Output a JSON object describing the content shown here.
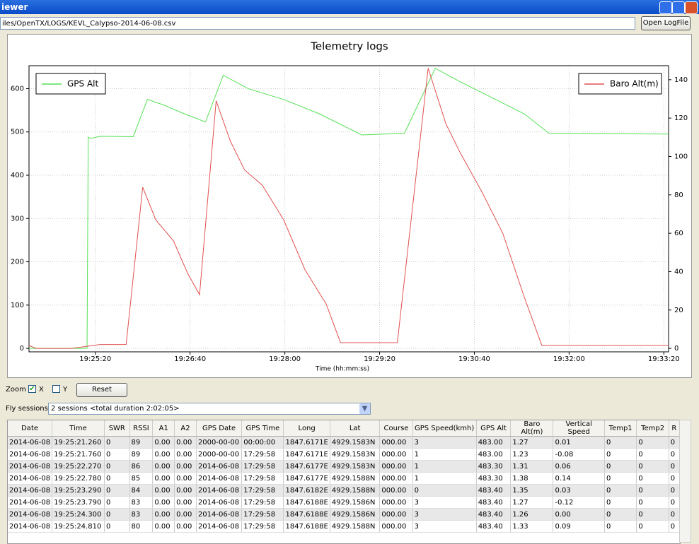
{
  "window": {
    "title": "iewer",
    "file_path": "iles/OpenTX/LOGS/KEVL_Calypso-2014-06-08.csv",
    "open_button": "Open LogFile"
  },
  "chart_data": {
    "type": "line",
    "title": "Telemetry logs",
    "x_label": "Time (hh:mm:ss)",
    "xlim": [
      "19:24:24",
      "19:33:24"
    ],
    "xticks": [
      "19:25:20",
      "19:26:40",
      "19:28:00",
      "19:29:20",
      "19:30:40",
      "19:32:00",
      "19:33:20"
    ],
    "ylim": [
      -8,
      653
    ],
    "yticks": [
      0,
      100,
      200,
      300,
      400,
      500,
      600
    ],
    "y2lim": [
      -1.8,
      147.3
    ],
    "y2ticks": [
      0,
      20,
      40,
      60,
      80,
      100,
      120,
      140
    ],
    "grid": true,
    "series": [
      {
        "name": "GPS Alt",
        "color": "#55e055",
        "legend": "upper left",
        "x": [
          "19:24:24",
          "19:25:13",
          "19:25:14",
          "19:25:16",
          "19:25:24",
          "19:25:52",
          "19:26:04",
          "19:26:18",
          "19:26:35",
          "19:26:53",
          "19:27:08",
          "19:27:29",
          "19:27:59",
          "19:28:29",
          "19:29:05",
          "19:29:41",
          "19:30:07",
          "19:30:28",
          "19:30:58",
          "19:31:22",
          "19:31:43",
          "19:33:24"
        ],
        "values": [
          0,
          0,
          488,
          485,
          490,
          489,
          575,
          562,
          542,
          523,
          631,
          600,
          575,
          542,
          493,
          497,
          647,
          616,
          575,
          542,
          497,
          495
        ]
      },
      {
        "name": "Baro Alt(m)",
        "color": "#e05050",
        "axis": "y2",
        "legend": "upper right",
        "x": [
          "19:24:24",
          "19:24:30",
          "19:25:00",
          "19:25:24",
          "19:25:46",
          "19:26:00",
          "19:26:11",
          "19:26:26",
          "19:26:38",
          "19:26:48",
          "19:27:02",
          "19:27:14",
          "19:27:26",
          "19:27:41",
          "19:27:59",
          "19:28:17",
          "19:28:35",
          "19:28:47",
          "19:29:35",
          "19:30:01",
          "19:30:16",
          "19:30:28",
          "19:30:46",
          "19:31:04",
          "19:31:22",
          "19:31:37",
          "19:33:24"
        ],
        "values": [
          1.5,
          0,
          0,
          2,
          2,
          84,
          67,
          56,
          39,
          28,
          129,
          108,
          93,
          85,
          67,
          41,
          23,
          3,
          3,
          146,
          117,
          102,
          82,
          60,
          27,
          1.5,
          1.5
        ]
      }
    ]
  },
  "controls": {
    "zoom": "Zoom",
    "x": "X",
    "x_checked": true,
    "y": "Y",
    "y_checked": false,
    "reset": "Reset",
    "sessions_label": "Fly sessions",
    "sessions": "2 sessions <total duration 2:02:05>"
  },
  "table": {
    "columns": [
      "Date",
      "Time",
      "SWR",
      "RSSI",
      "A1",
      "A2",
      "GPS Date",
      "GPS Time",
      "Long",
      "Lat",
      "Course",
      "GPS Speed(kmh)",
      "GPS Alt",
      "Baro Alt(m)",
      "Vertical Speed",
      "Temp1",
      "Temp2",
      "R"
    ],
    "rows": [
      [
        "2014-06-08",
        "19:25:21.260",
        "0",
        "89",
        "0.00",
        "0.00",
        "2000-00-00",
        "00:00:00",
        "1847.6171E",
        "4929.1583N",
        "000.00",
        "3",
        "483.00",
        "1.27",
        "0.01",
        "0",
        "0",
        "0"
      ],
      [
        "2014-06-08",
        "19:25:21.760",
        "0",
        "89",
        "0.00",
        "0.00",
        "2000-00-00",
        "17:29:58",
        "1847.6171E",
        "4929.1583N",
        "000.00",
        "1",
        "483.00",
        "1.23",
        "-0.08",
        "0",
        "0",
        "0"
      ],
      [
        "2014-06-08",
        "19:25:22.270",
        "0",
        "86",
        "0.00",
        "0.00",
        "2014-06-08",
        "17:29:58",
        "1847.6177E",
        "4929.1583N",
        "000.00",
        "1",
        "483.30",
        "1.31",
        "0.06",
        "0",
        "0",
        "0"
      ],
      [
        "2014-06-08",
        "19:25:22.780",
        "0",
        "85",
        "0.00",
        "0.00",
        "2014-06-08",
        "17:29:58",
        "1847.6177E",
        "4929.1588N",
        "000.00",
        "1",
        "483.30",
        "1.38",
        "0.14",
        "0",
        "0",
        "0"
      ],
      [
        "2014-06-08",
        "19:25:23.290",
        "0",
        "84",
        "0.00",
        "0.00",
        "2014-06-08",
        "17:29:58",
        "1847.6182E",
        "4929.1588N",
        "000.00",
        "0",
        "483.40",
        "1.35",
        "0.03",
        "0",
        "0",
        "0"
      ],
      [
        "2014-06-08",
        "19:25:23.790",
        "0",
        "83",
        "0.00",
        "0.00",
        "2014-06-08",
        "17:29:58",
        "1847.6188E",
        "4929.1586N",
        "000.00",
        "3",
        "483.40",
        "1.27",
        "-0.12",
        "0",
        "0",
        "0"
      ],
      [
        "2014-06-08",
        "19:25:24.300",
        "0",
        "83",
        "0.00",
        "0.00",
        "2014-06-08",
        "17:29:58",
        "1847.6188E",
        "4929.1586N",
        "000.00",
        "3",
        "483.40",
        "1.26",
        "0.00",
        "0",
        "0",
        "0"
      ],
      [
        "2014-06-08",
        "19:25:24.810",
        "0",
        "80",
        "0.00",
        "0.00",
        "2014-06-08",
        "17:29:58",
        "1847.6188E",
        "4929.1588N",
        "000.00",
        "3",
        "483.40",
        "1.33",
        "0.09",
        "0",
        "0",
        "0"
      ]
    ]
  }
}
